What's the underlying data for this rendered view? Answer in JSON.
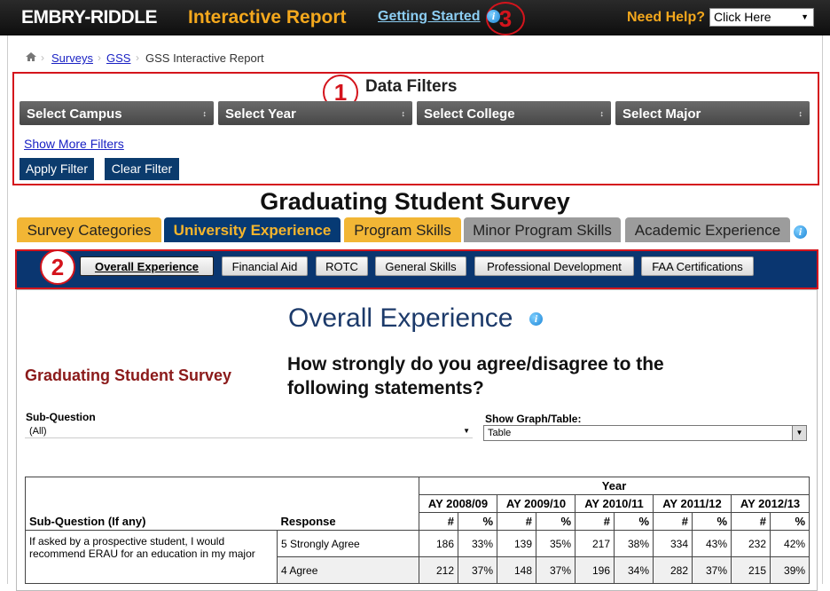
{
  "header": {
    "logo": "EMBRY-RIDDLE",
    "title": "Interactive Report",
    "getting_started": "Getting Started",
    "callout": "3",
    "help_label": "Need Help?",
    "help_select": "Click Here"
  },
  "breadcrumb": [
    "Surveys",
    "GSS",
    "GSS Interactive Report"
  ],
  "filters": {
    "title": "Data Filters",
    "callout": "1",
    "dropdowns": [
      "Select Campus",
      "Select Year",
      "Select College",
      "Select Major"
    ],
    "more_link": "Show More Filters",
    "buttons": [
      "Apply Filter",
      "Clear Filter"
    ]
  },
  "page_title": "Graduating Student Survey",
  "tabs": [
    "Survey Categories",
    "University Experience",
    "Program Skills",
    "Minor Program Skills",
    "Academic Experience"
  ],
  "subnav": {
    "callout": "2",
    "items": [
      "Overall Experience",
      "Financial Aid",
      "ROTC",
      "General Skills",
      "Professional Development",
      "FAA Certifications"
    ]
  },
  "content": {
    "heading": "Overall Experience",
    "survey_name": "Graduating Student Survey",
    "question": "How strongly do you agree/disagree to the following statements?",
    "sub_question_label": "Sub-Question",
    "sub_question_value": "(All)",
    "view_label": "Show Graph/Table:",
    "view_value": "Table"
  },
  "table": {
    "year_header": "Year",
    "sub_question_header": "Sub-Question (If any)",
    "response_header": "Response",
    "years": [
      "AY 2008/09",
      "AY 2009/10",
      "AY 2010/11",
      "AY 2011/12",
      "AY 2012/13"
    ],
    "count_header": "#",
    "percent_header": "%",
    "rows": [
      {
        "sub_question": "If asked by a prospective student, I would recommend ERAU for an education in my major",
        "responses": [
          {
            "response": "5 Strongly Agree",
            "cells": [
              186,
              "33%",
              139,
              "35%",
              217,
              "38%",
              334,
              "43%",
              232,
              "42%"
            ]
          },
          {
            "response": "4 Agree",
            "cells": [
              212,
              "37%",
              148,
              "37%",
              196,
              "34%",
              282,
              "37%",
              215,
              "39%"
            ]
          }
        ]
      }
    ]
  }
}
